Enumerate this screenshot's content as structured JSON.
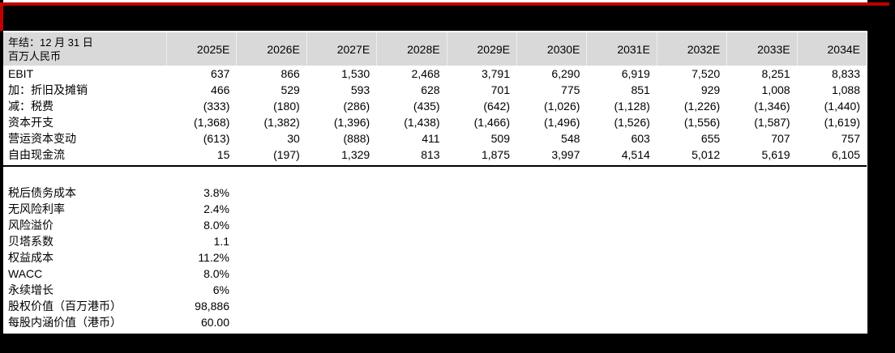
{
  "colors": {
    "accent_red": "#c00000",
    "header_bg": "#d9d9d9",
    "page_bg": "#ffffff",
    "frame_bg": "#000000"
  },
  "table": {
    "header_label_line1": "年结：12 月 31 日",
    "header_label_line2": "百万人民币",
    "columns": [
      "2025E",
      "2026E",
      "2027E",
      "2028E",
      "2029E",
      "2030E",
      "2031E",
      "2032E",
      "2033E",
      "2034E"
    ],
    "rows": [
      {
        "label": "EBIT",
        "values": [
          "637",
          "866",
          "1,530",
          "2,468",
          "3,791",
          "6,290",
          "6,919",
          "7,520",
          "8,251",
          "8,833"
        ]
      },
      {
        "label": "加：折旧及摊销",
        "values": [
          "466",
          "529",
          "593",
          "628",
          "701",
          "775",
          "851",
          "929",
          "1,008",
          "1,088"
        ]
      },
      {
        "label": "减：税费",
        "values": [
          "(333)",
          "(180)",
          "(286)",
          "(435)",
          "(642)",
          "(1,026)",
          "(1,128)",
          "(1,226)",
          "(1,346)",
          "(1,440)"
        ]
      },
      {
        "label": "资本开支",
        "values": [
          "(1,368)",
          "(1,382)",
          "(1,396)",
          "(1,438)",
          "(1,466)",
          "(1,496)",
          "(1,526)",
          "(1,556)",
          "(1,587)",
          "(1,619)"
        ]
      },
      {
        "label": "营运资本变动",
        "values": [
          "(613)",
          "30",
          "(888)",
          "411",
          "509",
          "548",
          "603",
          "655",
          "707",
          "757"
        ]
      },
      {
        "label": "自由现金流",
        "values": [
          "15",
          "(197)",
          "1,329",
          "813",
          "1,875",
          "3,997",
          "4,514",
          "5,012",
          "5,619",
          "6,105"
        ]
      }
    ]
  },
  "assumptions": [
    {
      "label": "税后债务成本",
      "value": "3.8%"
    },
    {
      "label": "无风险利率",
      "value": "2.4%"
    },
    {
      "label": "风险溢价",
      "value": "8.0%"
    },
    {
      "label": "贝塔系数",
      "value": "1.1"
    },
    {
      "label": "权益成本",
      "value": "11.2%"
    },
    {
      "label": "WACC",
      "value": "8.0%"
    },
    {
      "label": "永续增长",
      "value": "6%"
    },
    {
      "label": "股权价值（百万港币）",
      "value": "98,886"
    },
    {
      "label": "每股内涵价值（港币）",
      "value": "60.00"
    }
  ]
}
